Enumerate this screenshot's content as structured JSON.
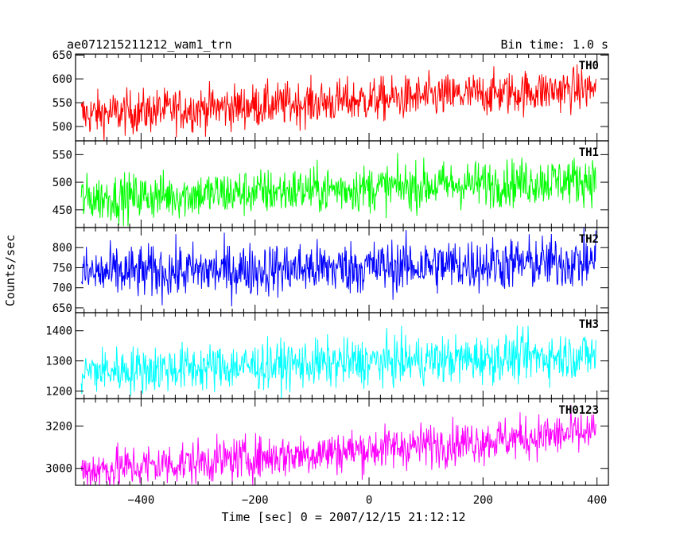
{
  "chart_data": {
    "type": "line",
    "title": "ae071215211212_wam1_trn",
    "subtitle": "Bin time: 1.0 s",
    "xlabel": "Time [sec] 0 = 2007/12/15 21:12:12",
    "ylabel": "Counts/sec",
    "xlim": [
      -515,
      420
    ],
    "xticks": [
      -400,
      -200,
      0,
      200,
      400
    ],
    "x_range": [
      -505,
      398
    ],
    "bin_time": 1.0,
    "grid": false,
    "panels": [
      {
        "name": "TH0",
        "color": "#ff0000",
        "ylim": [
          470,
          652
        ],
        "yticks": [
          500,
          550,
          600,
          650
        ],
        "trend": {
          "start": 525,
          "end": 580
        },
        "noise": 38
      },
      {
        "name": "TH1",
        "color": "#00ff00",
        "ylim": [
          418,
          575
        ],
        "yticks": [
          450,
          500,
          550
        ],
        "trend": {
          "start": 470,
          "end": 505
        },
        "noise": 35
      },
      {
        "name": "TH2",
        "color": "#0000ff",
        "ylim": [
          638,
          850
        ],
        "yticks": [
          650,
          700,
          750,
          800
        ],
        "trend": {
          "start": 735,
          "end": 765
        },
        "noise": 55
      },
      {
        "name": "TH3",
        "color": "#00ffff",
        "ylim": [
          1175,
          1460
        ],
        "yticks": [
          1200,
          1300,
          1400
        ],
        "trend": {
          "start": 1265,
          "end": 1320
        },
        "noise": 65
      },
      {
        "name": "TH0123",
        "color": "#ff00ff",
        "ylim": [
          2920,
          3330
        ],
        "yticks": [
          3000,
          3200
        ],
        "trend": {
          "start": 2990,
          "end": 3170
        },
        "noise": 85
      }
    ]
  }
}
